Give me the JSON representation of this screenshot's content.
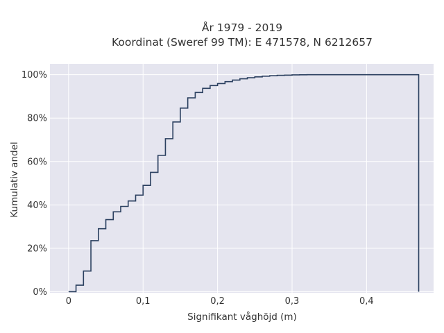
{
  "chart_data": {
    "type": "line",
    "step": true,
    "title_lines": [
      "År 1979 - 2019",
      "Koordinat (Sweref 99 TM): E 471578, N 6212657"
    ],
    "xlabel": "Signifikant våghöjd (m)",
    "ylabel": "Kumulativ andel",
    "xlim": [
      -0.025,
      0.49
    ],
    "ylim": [
      -0.005,
      1.05
    ],
    "x_ticks": [
      {
        "value": 0,
        "label": "0"
      },
      {
        "value": 0.1,
        "label": "0,1"
      },
      {
        "value": 0.2,
        "label": "0,2"
      },
      {
        "value": 0.3,
        "label": "0,3"
      },
      {
        "value": 0.4,
        "label": "0,4"
      }
    ],
    "y_ticks": [
      {
        "value": 0,
        "label": "0%"
      },
      {
        "value": 0.2,
        "label": "20%"
      },
      {
        "value": 0.4,
        "label": "40%"
      },
      {
        "value": 0.6,
        "label": "60%"
      },
      {
        "value": 0.8,
        "label": "80%"
      },
      {
        "value": 1.0,
        "label": "100%"
      }
    ],
    "grid": true,
    "colors": {
      "plot_bg": "#e5e5ef",
      "grid": "#ffffff",
      "line": "#2a3f5f"
    },
    "series": [
      {
        "x": [
          0,
          0.01,
          0.02,
          0.03,
          0.04,
          0.05,
          0.06,
          0.07,
          0.08,
          0.09,
          0.1,
          0.11,
          0.12,
          0.13,
          0.14,
          0.15,
          0.16,
          0.17,
          0.18,
          0.19,
          0.2,
          0.21,
          0.22,
          0.23,
          0.24,
          0.25,
          0.26,
          0.27,
          0.28,
          0.29,
          0.3,
          0.31,
          0.32,
          0.33,
          0.35,
          0.47,
          0.47
        ],
        "y": [
          0,
          0.03,
          0.095,
          0.235,
          0.29,
          0.332,
          0.368,
          0.393,
          0.418,
          0.445,
          0.49,
          0.55,
          0.628,
          0.705,
          0.782,
          0.846,
          0.893,
          0.918,
          0.937,
          0.95,
          0.959,
          0.968,
          0.975,
          0.981,
          0.986,
          0.99,
          0.993,
          0.995,
          0.997,
          0.998,
          0.999,
          0.9995,
          0.9998,
          0.9999,
          1.0,
          1.0,
          0
        ]
      }
    ]
  }
}
